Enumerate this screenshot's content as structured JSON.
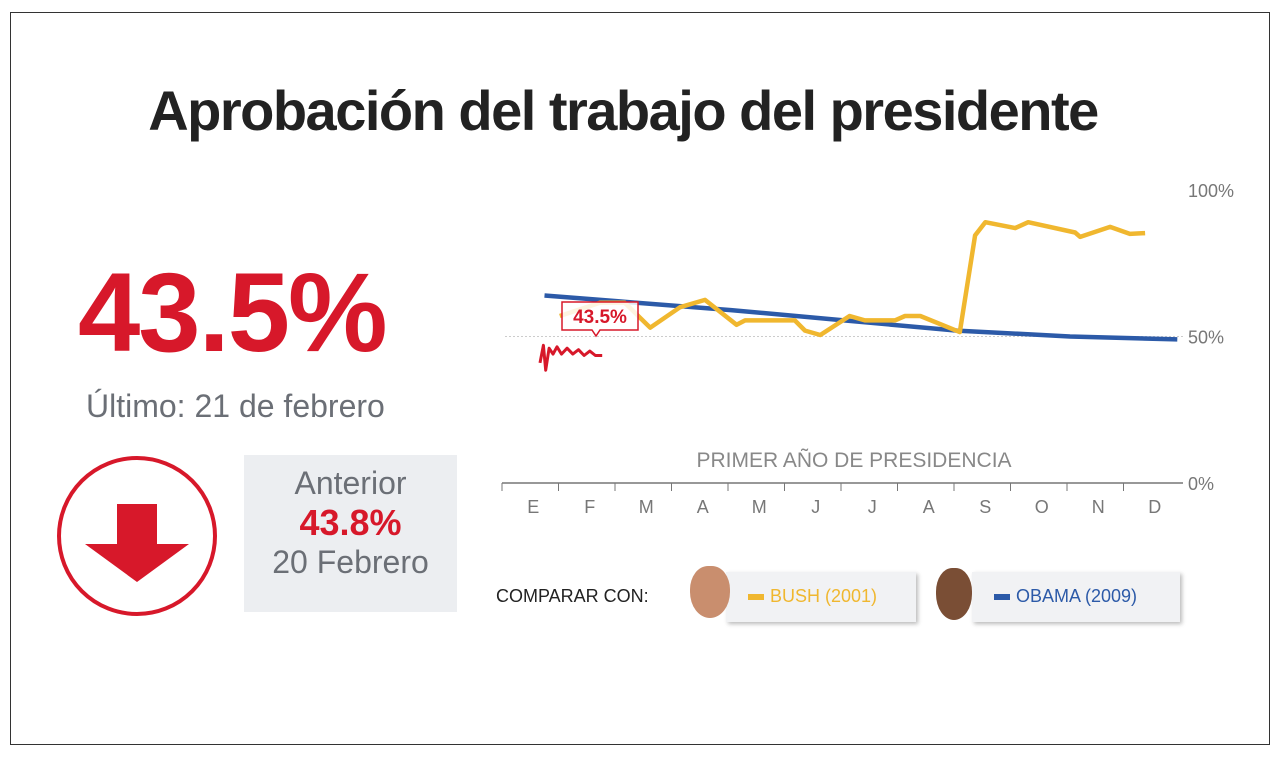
{
  "title": "Aprobación del trabajo del presidente",
  "current": {
    "value": "43.5%",
    "date": "Último: 21 de febrero",
    "trend_icon": "arrow-down-icon"
  },
  "previous": {
    "label": "Anterior",
    "value": "43.8%",
    "date": "20 Febrero"
  },
  "compare": {
    "label": "COMPARAR CON:",
    "items": [
      {
        "label": "BUSH (2001)",
        "color": "#f0b72f"
      },
      {
        "label": "OBAMA (2009)",
        "color": "#2c5aa8"
      }
    ]
  },
  "chart_data": {
    "type": "line",
    "xlabel": "PRIMER AÑO DE PRESIDENCIA",
    "x_ticks": [
      "E",
      "F",
      "M",
      "A",
      "M",
      "J",
      "J",
      "A",
      "S",
      "O",
      "N",
      "D"
    ],
    "y_ticks": [
      "0%",
      "50%",
      "100%"
    ],
    "ylim": [
      0,
      100
    ],
    "xlim": [
      0,
      12
    ],
    "current_label": "43.5%",
    "series": [
      {
        "name": "OBAMA (2009)",
        "color": "#2c5aa8",
        "points": [
          [
            0.7,
            64
          ],
          [
            2,
            62
          ],
          [
            4,
            59
          ],
          [
            6,
            55.5
          ],
          [
            8,
            52
          ],
          [
            10,
            50
          ],
          [
            11.9,
            49
          ]
        ]
      },
      {
        "name": "BUSH (2001)",
        "color": "#f0b72f",
        "points": [
          [
            0.97,
            57
          ],
          [
            1.68,
            61.5
          ],
          [
            2.12,
            61.5
          ],
          [
            2.57,
            53
          ],
          [
            3.1,
            60
          ],
          [
            3.54,
            62.5
          ],
          [
            4.1,
            54
          ],
          [
            4.25,
            55.5
          ],
          [
            5.13,
            55.5
          ],
          [
            5.31,
            52
          ],
          [
            5.58,
            50.5
          ],
          [
            6.1,
            57
          ],
          [
            6.37,
            55.5
          ],
          [
            6.9,
            55.5
          ],
          [
            7.08,
            57
          ],
          [
            7.35,
            57
          ],
          [
            8.05,
            51.5
          ],
          [
            8.32,
            84.5
          ],
          [
            8.5,
            89
          ],
          [
            9.03,
            87
          ],
          [
            9.26,
            89
          ],
          [
            10.09,
            85.5
          ],
          [
            10.18,
            84
          ],
          [
            10.71,
            87.4
          ],
          [
            11.06,
            85
          ],
          [
            11.33,
            85.3
          ]
        ]
      },
      {
        "color": "#d7182a",
        "points": [
          [
            0.62,
            41
          ],
          [
            0.68,
            47
          ],
          [
            0.72,
            38.5
          ],
          [
            0.78,
            46
          ],
          [
            0.85,
            44
          ],
          [
            0.92,
            46.5
          ],
          [
            1.0,
            44
          ],
          [
            1.1,
            46
          ],
          [
            1.2,
            44
          ],
          [
            1.3,
            45.5
          ],
          [
            1.4,
            43.5
          ],
          [
            1.5,
            45
          ],
          [
            1.6,
            43.5
          ],
          [
            1.72,
            43.5
          ]
        ]
      }
    ]
  }
}
